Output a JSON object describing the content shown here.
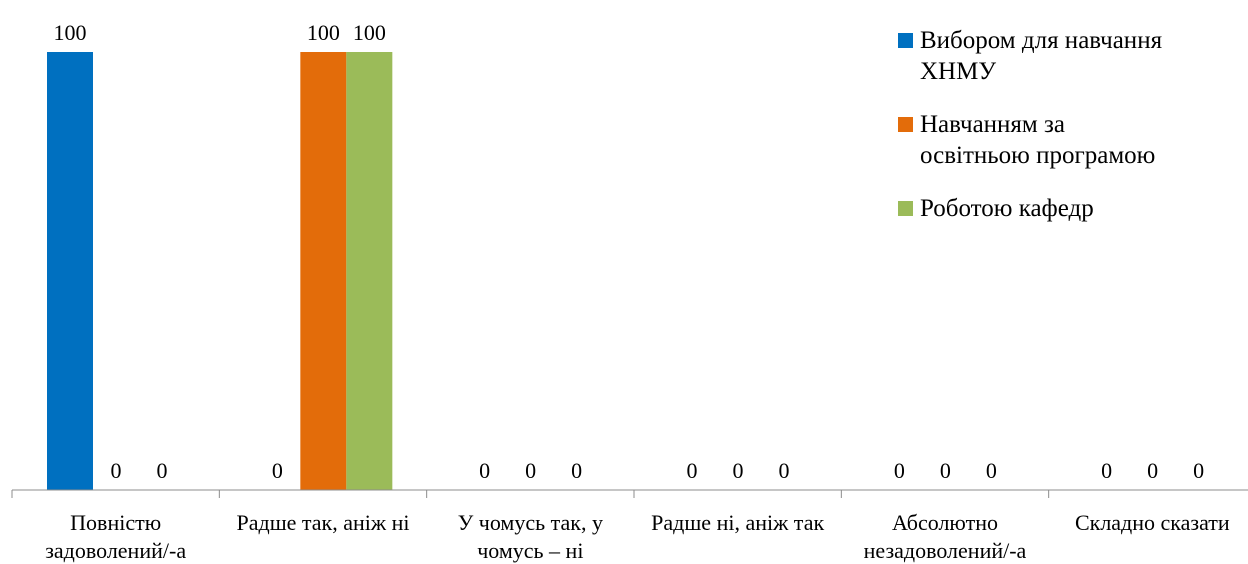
{
  "chart_data": {
    "type": "bar",
    "categories": [
      [
        "Повністю",
        "задоволений/-а"
      ],
      [
        "Радше так, аніж ні"
      ],
      [
        "У чомусь так, у",
        "чомусь – ні"
      ],
      [
        "Радше ні, аніж так"
      ],
      [
        "Абсолютно",
        "незадоволений/-а"
      ],
      [
        "Складно сказати"
      ]
    ],
    "series": [
      {
        "name": [
          "Вибором для навчання",
          "ХНМУ"
        ],
        "color": "#0070C0",
        "values": [
          100,
          0,
          0,
          0,
          0,
          0
        ]
      },
      {
        "name": [
          "Навчанням за",
          "освітньою програмою"
        ],
        "color": "#E36C0A",
        "values": [
          0,
          100,
          0,
          0,
          0,
          0
        ]
      },
      {
        "name": [
          "Роботою кафедр"
        ],
        "color": "#9BBB59",
        "values": [
          0,
          100,
          0,
          0,
          0,
          0
        ]
      }
    ],
    "ylim": [
      0,
      100
    ],
    "grid": false,
    "legend": "top-right"
  }
}
